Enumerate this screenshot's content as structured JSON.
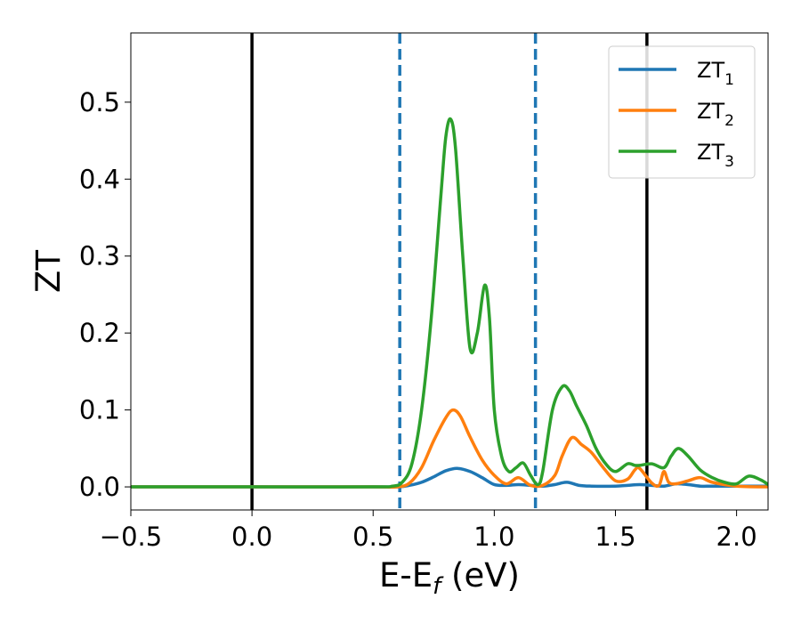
{
  "chart_data": {
    "type": "line",
    "xlabel": {
      "main": "E-E",
      "sub": "f",
      "unit": " (eV)"
    },
    "ylabel": "ZT",
    "xlim": [
      -0.5,
      2.13
    ],
    "ylim": [
      -0.03,
      0.59
    ],
    "x_ticks": [
      -0.5,
      0.0,
      0.5,
      1.0,
      1.5,
      2.0
    ],
    "x_tick_labels": [
      "−0.5",
      "0.0",
      "0.5",
      "1.0",
      "1.5",
      "2.0"
    ],
    "y_ticks": [
      0.0,
      0.1,
      0.2,
      0.3,
      0.4,
      0.5
    ],
    "y_tick_labels": [
      "0.0",
      "0.1",
      "0.2",
      "0.3",
      "0.4",
      "0.5"
    ],
    "grid": false,
    "legend_position": "top-right",
    "vertical_lines": [
      {
        "x": 0.0,
        "style": "solid",
        "color": "#000000"
      },
      {
        "x": 0.61,
        "style": "dashed",
        "color": "#1f77b4"
      },
      {
        "x": 1.17,
        "style": "dashed",
        "color": "#1f77b4"
      },
      {
        "x": 1.63,
        "style": "solid",
        "color": "#000000"
      }
    ],
    "series": [
      {
        "name": "ZT",
        "name_sub": "1",
        "color": "#1f77b4",
        "x": [
          -0.5,
          0.0,
          0.5,
          0.6,
          0.65,
          0.7,
          0.75,
          0.8,
          0.85,
          0.9,
          0.95,
          1.0,
          1.05,
          1.1,
          1.15,
          1.2,
          1.25,
          1.3,
          1.35,
          1.4,
          1.5,
          1.55,
          1.6,
          1.65,
          1.7,
          1.75,
          1.8,
          1.85,
          1.9,
          2.0,
          2.13
        ],
        "y": [
          0.0,
          0.0,
          0.0,
          0.0,
          0.002,
          0.006,
          0.013,
          0.021,
          0.024,
          0.02,
          0.012,
          0.003,
          0.002,
          0.003,
          0.002,
          0.001,
          0.003,
          0.006,
          0.002,
          0.001,
          0.001,
          0.002,
          0.003,
          0.002,
          0.001,
          0.004,
          0.003,
          0.001,
          0.001,
          0.001,
          0.001
        ]
      },
      {
        "name": "ZT",
        "name_sub": "2",
        "color": "#ff7f0e",
        "x": [
          -0.5,
          0.0,
          0.5,
          0.6,
          0.65,
          0.7,
          0.75,
          0.8,
          0.83,
          0.86,
          0.9,
          0.95,
          1.0,
          1.05,
          1.1,
          1.15,
          1.2,
          1.25,
          1.28,
          1.32,
          1.36,
          1.4,
          1.45,
          1.5,
          1.55,
          1.58,
          1.6,
          1.65,
          1.68,
          1.7,
          1.72,
          1.75,
          1.8,
          1.85,
          1.9,
          2.0,
          2.13
        ],
        "y": [
          0.0,
          0.0,
          0.0,
          0.0,
          0.005,
          0.025,
          0.06,
          0.09,
          0.1,
          0.092,
          0.065,
          0.035,
          0.015,
          0.004,
          0.012,
          0.002,
          0.002,
          0.015,
          0.04,
          0.064,
          0.055,
          0.045,
          0.025,
          0.008,
          0.01,
          0.022,
          0.024,
          0.005,
          0.002,
          0.02,
          0.006,
          0.004,
          0.008,
          0.012,
          0.006,
          0.001,
          0.0
        ]
      },
      {
        "name": "ZT",
        "name_sub": "3",
        "color": "#2ca02c",
        "x": [
          -0.5,
          0.0,
          0.5,
          0.58,
          0.62,
          0.66,
          0.7,
          0.74,
          0.78,
          0.8,
          0.82,
          0.84,
          0.87,
          0.9,
          0.93,
          0.96,
          0.98,
          1.0,
          1.03,
          1.06,
          1.09,
          1.12,
          1.15,
          1.18,
          1.2,
          1.24,
          1.28,
          1.31,
          1.34,
          1.38,
          1.42,
          1.46,
          1.5,
          1.55,
          1.58,
          1.6,
          1.65,
          1.7,
          1.73,
          1.76,
          1.8,
          1.85,
          1.9,
          1.95,
          2.0,
          2.05,
          2.1,
          2.13
        ],
        "y": [
          0.0,
          0.0,
          0.0,
          0.001,
          0.006,
          0.03,
          0.1,
          0.22,
          0.38,
          0.455,
          0.478,
          0.44,
          0.3,
          0.18,
          0.2,
          0.262,
          0.22,
          0.1,
          0.04,
          0.02,
          0.025,
          0.031,
          0.015,
          0.003,
          0.02,
          0.1,
          0.13,
          0.125,
          0.105,
          0.08,
          0.05,
          0.03,
          0.02,
          0.03,
          0.028,
          0.028,
          0.03,
          0.025,
          0.04,
          0.05,
          0.04,
          0.022,
          0.012,
          0.006,
          0.004,
          0.014,
          0.009,
          0.003
        ]
      }
    ]
  }
}
